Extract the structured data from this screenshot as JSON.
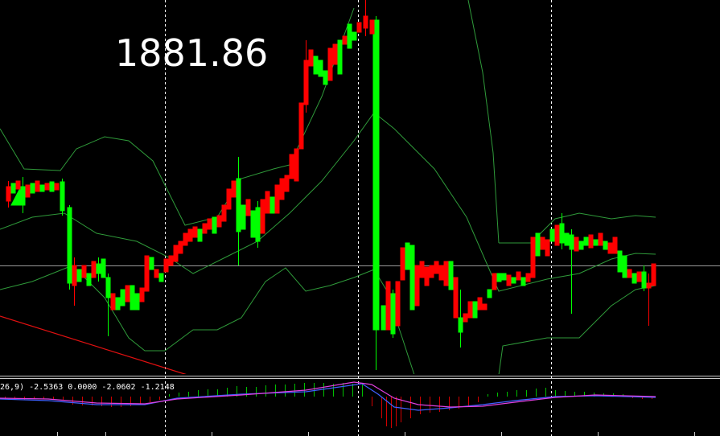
{
  "price_label": "1881.86",
  "indicator_label": "26,9) -2.5363 0.0000 -2.0602 -1.2148"
}
